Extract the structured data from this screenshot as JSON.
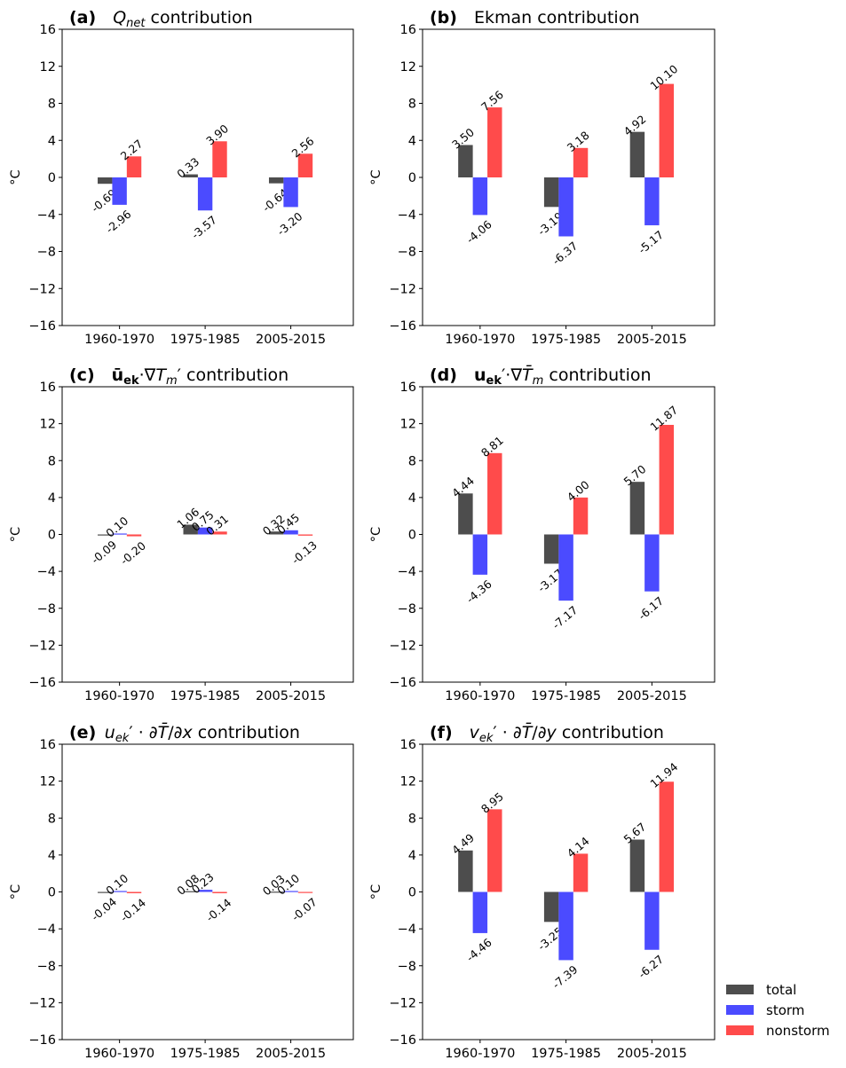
{
  "chart_data": [
    {
      "type": "bar",
      "panel": "(a)",
      "title": "Q_net contribution",
      "title_parts": {
        "main": "Q",
        "sub": "net",
        "rest": " contribution"
      },
      "ylabel": "°C",
      "categories": [
        "1960-1970",
        "1975-1985",
        "2005-2015"
      ],
      "yticks": [
        16,
        12,
        8,
        4,
        0,
        -4,
        -8,
        -12,
        -16
      ],
      "ylim": [
        -16,
        16
      ],
      "series": [
        {
          "name": "total",
          "values": [
            -0.69,
            0.33,
            -0.64
          ]
        },
        {
          "name": "storm",
          "values": [
            -2.96,
            -3.57,
            -3.2
          ]
        },
        {
          "name": "nonstorm",
          "values": [
            2.27,
            3.9,
            2.56
          ]
        }
      ]
    },
    {
      "type": "bar",
      "panel": "(b)",
      "title": "Ekman contribution",
      "ylabel": "°C",
      "categories": [
        "1960-1970",
        "1975-1985",
        "2005-2015"
      ],
      "yticks": [
        16,
        12,
        8,
        4,
        0,
        -4,
        -8,
        -12,
        -16
      ],
      "ylim": [
        -16,
        16
      ],
      "series": [
        {
          "name": "total",
          "values": [
            3.5,
            -3.19,
            4.92
          ]
        },
        {
          "name": "storm",
          "values": [
            -4.06,
            -6.37,
            -5.17
          ]
        },
        {
          "name": "nonstorm",
          "values": [
            7.56,
            3.18,
            10.1
          ]
        }
      ]
    },
    {
      "type": "bar",
      "panel": "(c)",
      "title": "ū_ek·∇T_m′ contribution",
      "ylabel": "°C",
      "categories": [
        "1960-1970",
        "1975-1985",
        "2005-2015"
      ],
      "yticks": [
        16,
        12,
        8,
        4,
        0,
        -4,
        -8,
        -12,
        -16
      ],
      "ylim": [
        -16,
        16
      ],
      "series": [
        {
          "name": "total",
          "values": [
            -0.09,
            1.06,
            0.32
          ]
        },
        {
          "name": "storm",
          "values": [
            0.1,
            0.75,
            0.45
          ]
        },
        {
          "name": "nonstorm",
          "values": [
            -0.2,
            0.31,
            -0.13
          ]
        }
      ]
    },
    {
      "type": "bar",
      "panel": "(d)",
      "title": "u_ek′·∇T̄_m contribution",
      "ylabel": "°C",
      "categories": [
        "1960-1970",
        "1975-1985",
        "2005-2015"
      ],
      "yticks": [
        16,
        12,
        8,
        4,
        0,
        -4,
        -8,
        -12,
        -16
      ],
      "ylim": [
        -16,
        16
      ],
      "series": [
        {
          "name": "total",
          "values": [
            4.44,
            -3.17,
            5.7
          ]
        },
        {
          "name": "storm",
          "values": [
            -4.36,
            -7.17,
            -6.17
          ]
        },
        {
          "name": "nonstorm",
          "values": [
            8.81,
            4.0,
            11.87
          ]
        }
      ]
    },
    {
      "type": "bar",
      "panel": "(e)",
      "title": "u_ek′·∂T̄/∂x contribution",
      "ylabel": "°C",
      "categories": [
        "1960-1970",
        "1975-1985",
        "2005-2015"
      ],
      "yticks": [
        16,
        12,
        8,
        4,
        0,
        -4,
        -8,
        -12,
        -16
      ],
      "ylim": [
        -16,
        16
      ],
      "series": [
        {
          "name": "total",
          "values": [
            -0.04,
            0.08,
            0.03
          ]
        },
        {
          "name": "storm",
          "values": [
            0.1,
            0.23,
            0.1
          ]
        },
        {
          "name": "nonstorm",
          "values": [
            -0.14,
            -0.14,
            -0.07
          ]
        }
      ]
    },
    {
      "type": "bar",
      "panel": "(f)",
      "title": "v_ek′·∂T̄/∂y contribution",
      "ylabel": "°C",
      "categories": [
        "1960-1970",
        "1975-1985",
        "2005-2015"
      ],
      "yticks": [
        16,
        12,
        8,
        4,
        0,
        -4,
        -8,
        -12,
        -16
      ],
      "ylim": [
        -16,
        16
      ],
      "series": [
        {
          "name": "total",
          "values": [
            4.49,
            -3.25,
            5.67
          ]
        },
        {
          "name": "storm",
          "values": [
            -4.46,
            -7.39,
            -6.27
          ]
        },
        {
          "name": "nonstorm",
          "values": [
            8.95,
            4.14,
            11.94
          ]
        }
      ]
    }
  ],
  "legend": {
    "placement": "bottom-right",
    "items": [
      {
        "name": "total",
        "color": "#4d4d4d"
      },
      {
        "name": "storm",
        "color": "#4b4bff"
      },
      {
        "name": "nonstorm",
        "color": "#ff4b4b"
      }
    ]
  },
  "colors": {
    "total": "#4d4d4d",
    "storm": "#4b4bff",
    "nonstorm": "#ff4b4b"
  }
}
